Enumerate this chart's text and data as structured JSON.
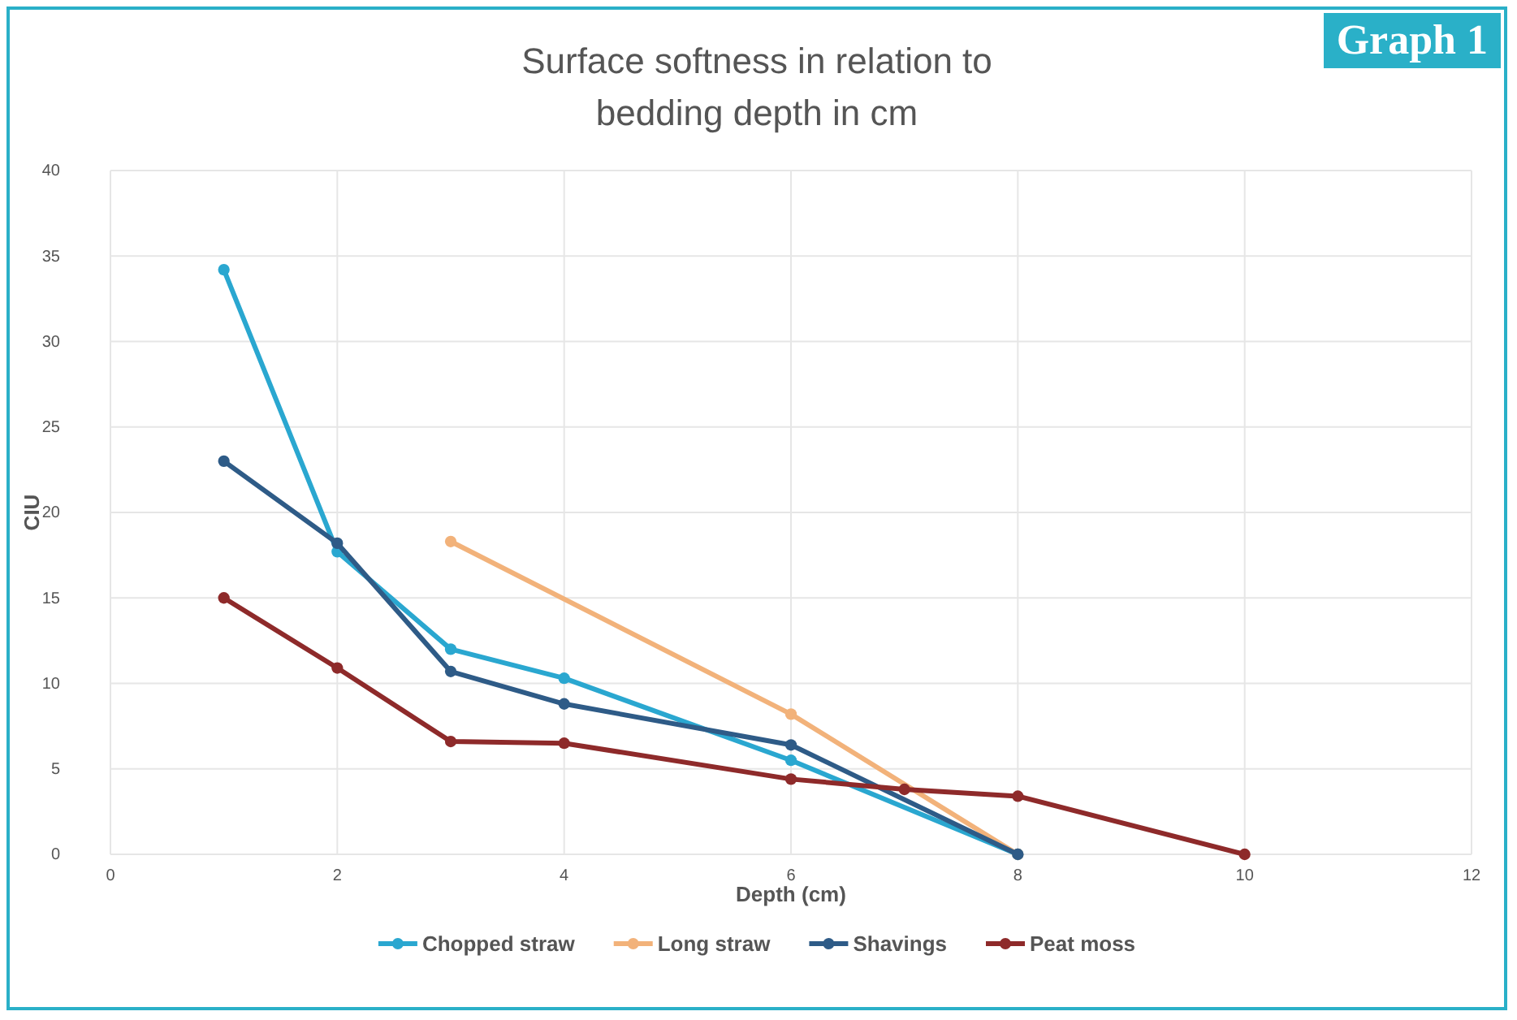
{
  "chart_data": {
    "type": "line",
    "title": "Surface softness in relation to bedding depth in cm",
    "xlabel": "Depth (cm)",
    "ylabel": "CIU",
    "annotations": [
      "Graph 1"
    ],
    "xlim": [
      0,
      12
    ],
    "xticks": [
      0,
      2,
      4,
      6,
      8,
      10,
      12
    ],
    "ylim": [
      0,
      40
    ],
    "yticks": [
      0,
      5,
      10,
      15,
      20,
      25,
      30,
      35,
      40
    ],
    "grid": true,
    "legend": "bottom",
    "marker": "circle",
    "line_style": "solid",
    "series": [
      {
        "name": "Chopped straw",
        "color": "#2aa7d0",
        "x": [
          1,
          2,
          3,
          4,
          6,
          8
        ],
        "values": [
          34.2,
          17.7,
          12,
          10.3,
          5.5,
          0
        ]
      },
      {
        "name": "Long straw",
        "color": "#f2b27a",
        "x": [
          3,
          6,
          8
        ],
        "values": [
          18.3,
          8.2,
          0
        ]
      },
      {
        "name": "Shavings",
        "color": "#2e5b87",
        "x": [
          1,
          2,
          3,
          4,
          6,
          8
        ],
        "values": [
          23,
          18.2,
          10.7,
          8.8,
          6.4,
          0
        ]
      },
      {
        "name": "Peat moss",
        "color": "#8e2a2a",
        "x": [
          1,
          2,
          3,
          4,
          6,
          7,
          8,
          10
        ],
        "values": [
          15,
          10.9,
          6.6,
          6.5,
          4.4,
          3.8,
          3.4,
          0
        ]
      }
    ]
  }
}
